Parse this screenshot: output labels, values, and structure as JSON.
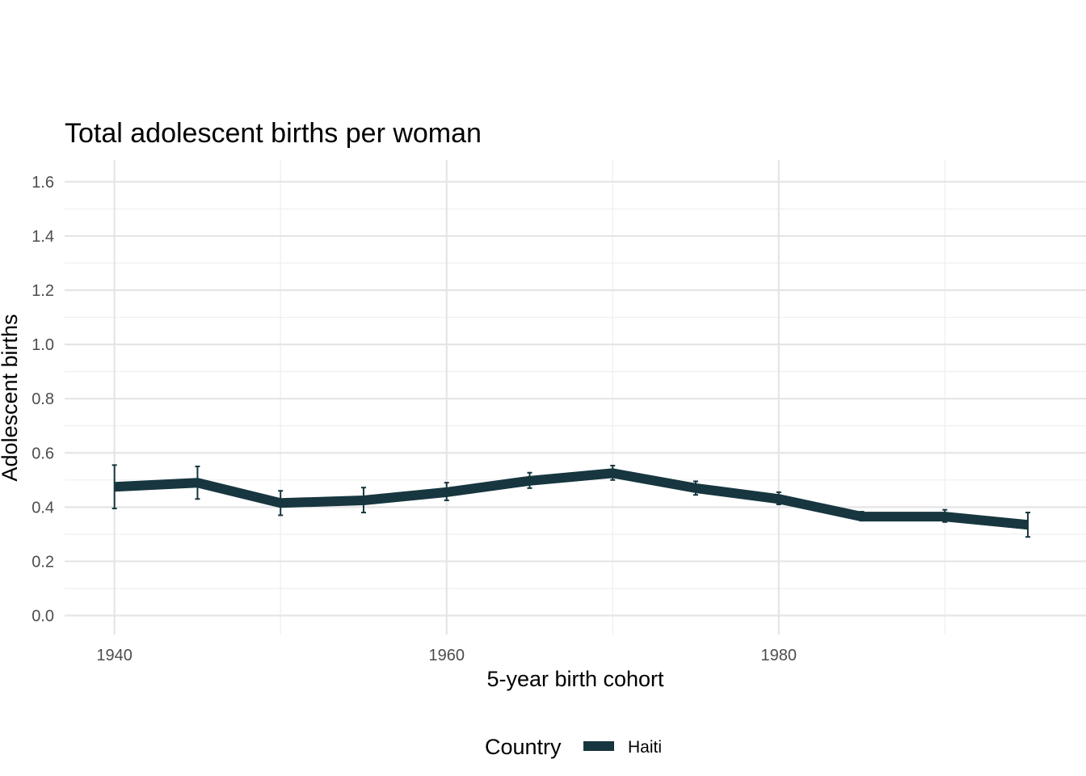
{
  "chart_data": {
    "type": "line",
    "title": "Total adolescent births per woman",
    "xlabel": "5-year birth cohort",
    "ylabel": "Adolescent births",
    "xlim": [
      1937.0,
      1998.5
    ],
    "ylim": [
      -0.07,
      1.68
    ],
    "x_ticks": [
      1940,
      1960,
      1980
    ],
    "x_tick_labels": [
      "1940",
      "1960",
      "1980"
    ],
    "x_minor_ticks": [
      1950,
      1970,
      1990
    ],
    "y_ticks": [
      0.0,
      0.2,
      0.4,
      0.6,
      0.8,
      1.0,
      1.2,
      1.4,
      1.6
    ],
    "y_tick_labels": [
      "0.0",
      "0.2",
      "0.4",
      "0.6",
      "0.8",
      "1.0",
      "1.2",
      "1.4",
      "1.6"
    ],
    "grid": true,
    "legend_position": "bottom",
    "legend_title": "Country",
    "series": [
      {
        "name": "Haiti",
        "color": "#17363f",
        "x": [
          1940,
          1945,
          1950,
          1955,
          1960,
          1965,
          1970,
          1975,
          1980,
          1985,
          1990,
          1995
        ],
        "y": [
          0.475,
          0.49,
          0.415,
          0.425,
          0.455,
          0.497,
          0.525,
          0.47,
          0.43,
          0.365,
          0.365,
          0.335
        ],
        "lower": [
          0.395,
          0.43,
          0.37,
          0.38,
          0.425,
          0.47,
          0.5,
          0.445,
          0.41,
          0.35,
          0.345,
          0.29
        ],
        "upper": [
          0.555,
          0.55,
          0.46,
          0.472,
          0.49,
          0.527,
          0.553,
          0.495,
          0.455,
          0.383,
          0.39,
          0.38
        ]
      }
    ]
  }
}
